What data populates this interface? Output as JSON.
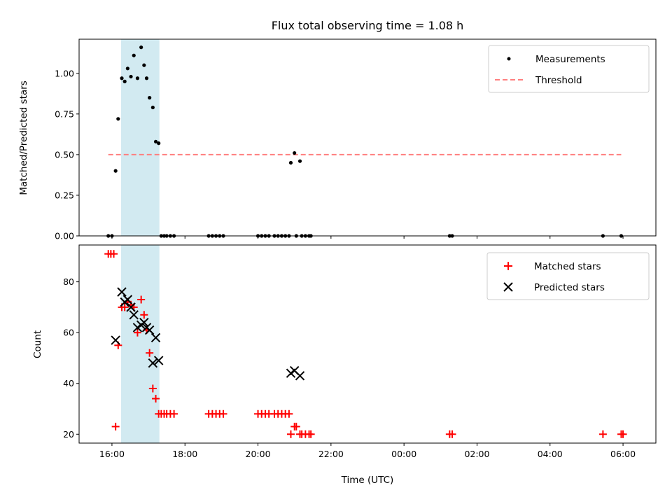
{
  "title": "Flux total observing time = 1.08 h",
  "colors": {
    "measurement": "#000000",
    "threshold": "#ff7f7f",
    "matched": "#ff0000",
    "predicted": "#000000",
    "span": "#add8e6"
  },
  "chart_data": [
    {
      "type": "scatter",
      "xlabel": "",
      "ylabel": "Matched/Predicted stars",
      "x_unit": "hours since 00:00 of first day",
      "xlim": [
        15.1,
        30.9
      ],
      "ylim": [
        0,
        1.21
      ],
      "y_ticks": [
        0.0,
        0.25,
        0.5,
        0.75,
        1.0
      ],
      "y_tick_labels": [
        "0.00",
        "0.25",
        "0.50",
        "0.75",
        "1.00"
      ],
      "shaded_span": [
        16.25,
        17.3
      ],
      "legend": {
        "placement": "top-right",
        "entries": [
          "Measurements",
          "Threshold"
        ]
      },
      "series": [
        {
          "name": "Measurements",
          "marker": "dot",
          "points": [
            [
              15.9,
              0
            ],
            [
              16.0,
              0
            ],
            [
              16.1,
              0.4
            ],
            [
              16.17,
              0.72
            ],
            [
              16.27,
              0.97
            ],
            [
              16.35,
              0.95
            ],
            [
              16.43,
              1.03
            ],
            [
              16.52,
              0.98
            ],
            [
              16.6,
              1.11
            ],
            [
              16.7,
              0.97
            ],
            [
              16.8,
              1.16
            ],
            [
              16.88,
              1.05
            ],
            [
              16.95,
              0.97
            ],
            [
              17.03,
              0.85
            ],
            [
              17.12,
              0.79
            ],
            [
              17.2,
              0.58
            ],
            [
              17.28,
              0.57
            ],
            [
              17.35,
              0
            ],
            [
              17.43,
              0
            ],
            [
              17.5,
              0
            ],
            [
              17.6,
              0
            ],
            [
              17.7,
              0
            ],
            [
              18.65,
              0
            ],
            [
              18.75,
              0
            ],
            [
              18.85,
              0
            ],
            [
              18.95,
              0
            ],
            [
              19.05,
              0
            ],
            [
              20.0,
              0
            ],
            [
              20.1,
              0
            ],
            [
              20.2,
              0
            ],
            [
              20.3,
              0
            ],
            [
              20.45,
              0
            ],
            [
              20.55,
              0
            ],
            [
              20.65,
              0
            ],
            [
              20.75,
              0
            ],
            [
              20.85,
              0
            ],
            [
              20.9,
              0.45
            ],
            [
              21.0,
              0.51
            ],
            [
              21.05,
              0
            ],
            [
              21.15,
              0.46
            ],
            [
              21.2,
              0
            ],
            [
              21.3,
              0
            ],
            [
              21.4,
              0
            ],
            [
              21.45,
              0
            ],
            [
              25.25,
              0
            ],
            [
              25.32,
              0
            ],
            [
              29.45,
              0
            ],
            [
              29.95,
              0
            ]
          ]
        },
        {
          "name": "Threshold",
          "style": "dashed",
          "points": [
            [
              15.9,
              0.5
            ],
            [
              29.95,
              0.5
            ]
          ]
        }
      ]
    },
    {
      "type": "scatter",
      "xlabel": "Time (UTC)",
      "ylabel": "Count",
      "x_unit": "hours since 00:00 of first day",
      "xlim": [
        15.1,
        30.9
      ],
      "ylim": [
        16.5,
        94.5
      ],
      "y_ticks": [
        20,
        40,
        60,
        80
      ],
      "y_tick_labels": [
        "20",
        "40",
        "60",
        "80"
      ],
      "x_ticks": [
        16,
        18,
        20,
        22,
        24,
        26,
        28,
        30
      ],
      "x_tick_labels": [
        "16:00",
        "18:00",
        "20:00",
        "22:00",
        "00:00",
        "02:00",
        "04:00",
        "06:00"
      ],
      "shaded_span": [
        16.25,
        17.3
      ],
      "legend": {
        "placement": "top-right",
        "entries": [
          "Matched stars",
          "Predicted stars"
        ]
      },
      "series": [
        {
          "name": "Matched stars",
          "marker": "plus",
          "points": [
            [
              15.9,
              91
            ],
            [
              15.97,
              91
            ],
            [
              16.05,
              91
            ],
            [
              16.1,
              23
            ],
            [
              16.17,
              55
            ],
            [
              16.27,
              70
            ],
            [
              16.35,
              70
            ],
            [
              16.43,
              72
            ],
            [
              16.52,
              71
            ],
            [
              16.6,
              70
            ],
            [
              16.7,
              60
            ],
            [
              16.8,
              73
            ],
            [
              16.88,
              67
            ],
            [
              16.95,
              61
            ],
            [
              17.03,
              52
            ],
            [
              17.12,
              38
            ],
            [
              17.2,
              34
            ],
            [
              17.28,
              28
            ],
            [
              17.35,
              28
            ],
            [
              17.43,
              28
            ],
            [
              17.5,
              28
            ],
            [
              17.6,
              28
            ],
            [
              17.7,
              28
            ],
            [
              18.65,
              28
            ],
            [
              18.75,
              28
            ],
            [
              18.85,
              28
            ],
            [
              18.95,
              28
            ],
            [
              19.05,
              28
            ],
            [
              20.0,
              28
            ],
            [
              20.1,
              28
            ],
            [
              20.2,
              28
            ],
            [
              20.3,
              28
            ],
            [
              20.45,
              28
            ],
            [
              20.55,
              28
            ],
            [
              20.65,
              28
            ],
            [
              20.75,
              28
            ],
            [
              20.85,
              28
            ],
            [
              20.9,
              20
            ],
            [
              21.0,
              23
            ],
            [
              21.05,
              23
            ],
            [
              21.15,
              20
            ],
            [
              21.2,
              20
            ],
            [
              21.3,
              20
            ],
            [
              21.4,
              20
            ],
            [
              21.45,
              20
            ],
            [
              25.25,
              20
            ],
            [
              25.32,
              20
            ],
            [
              29.45,
              20
            ],
            [
              29.95,
              20
            ],
            [
              30.0,
              20
            ]
          ]
        },
        {
          "name": "Predicted stars",
          "marker": "x",
          "points": [
            [
              16.1,
              57
            ],
            [
              16.27,
              76
            ],
            [
              16.35,
              72
            ],
            [
              16.43,
              73
            ],
            [
              16.52,
              70
            ],
            [
              16.6,
              67
            ],
            [
              16.7,
              62
            ],
            [
              16.8,
              63
            ],
            [
              16.88,
              64
            ],
            [
              16.95,
              62
            ],
            [
              17.03,
              61
            ],
            [
              17.12,
              48
            ],
            [
              17.2,
              58
            ],
            [
              17.28,
              49
            ],
            [
              20.9,
              44
            ],
            [
              21.0,
              45
            ],
            [
              21.15,
              43
            ]
          ]
        }
      ]
    }
  ]
}
